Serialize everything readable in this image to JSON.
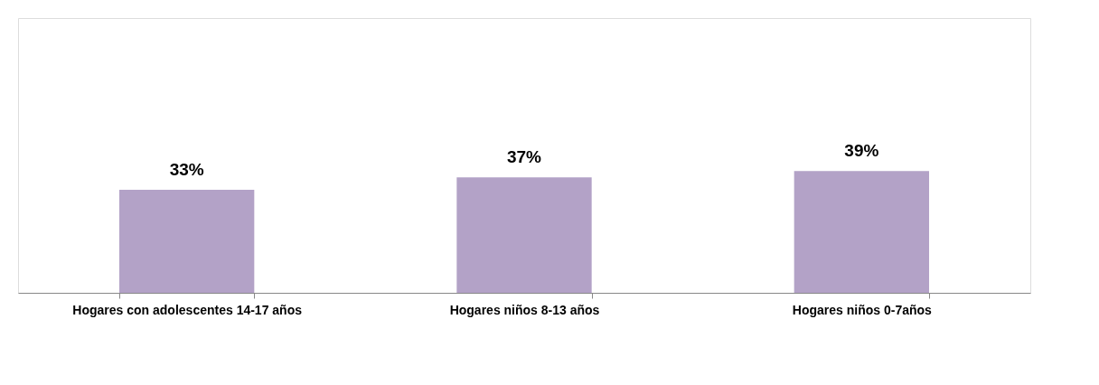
{
  "chart_data": {
    "type": "bar",
    "categories": [
      "Hogares con adolescentes 14-17 años",
      "Hogares niños 8-13 años",
      "Hogares niños 0-7años"
    ],
    "values": [
      33,
      37,
      39
    ],
    "color": "#b3a2c7",
    "value_labels": [
      "33%",
      "37%",
      "39%"
    ],
    "ylim": [
      0,
      88
    ],
    "grid": false
  }
}
